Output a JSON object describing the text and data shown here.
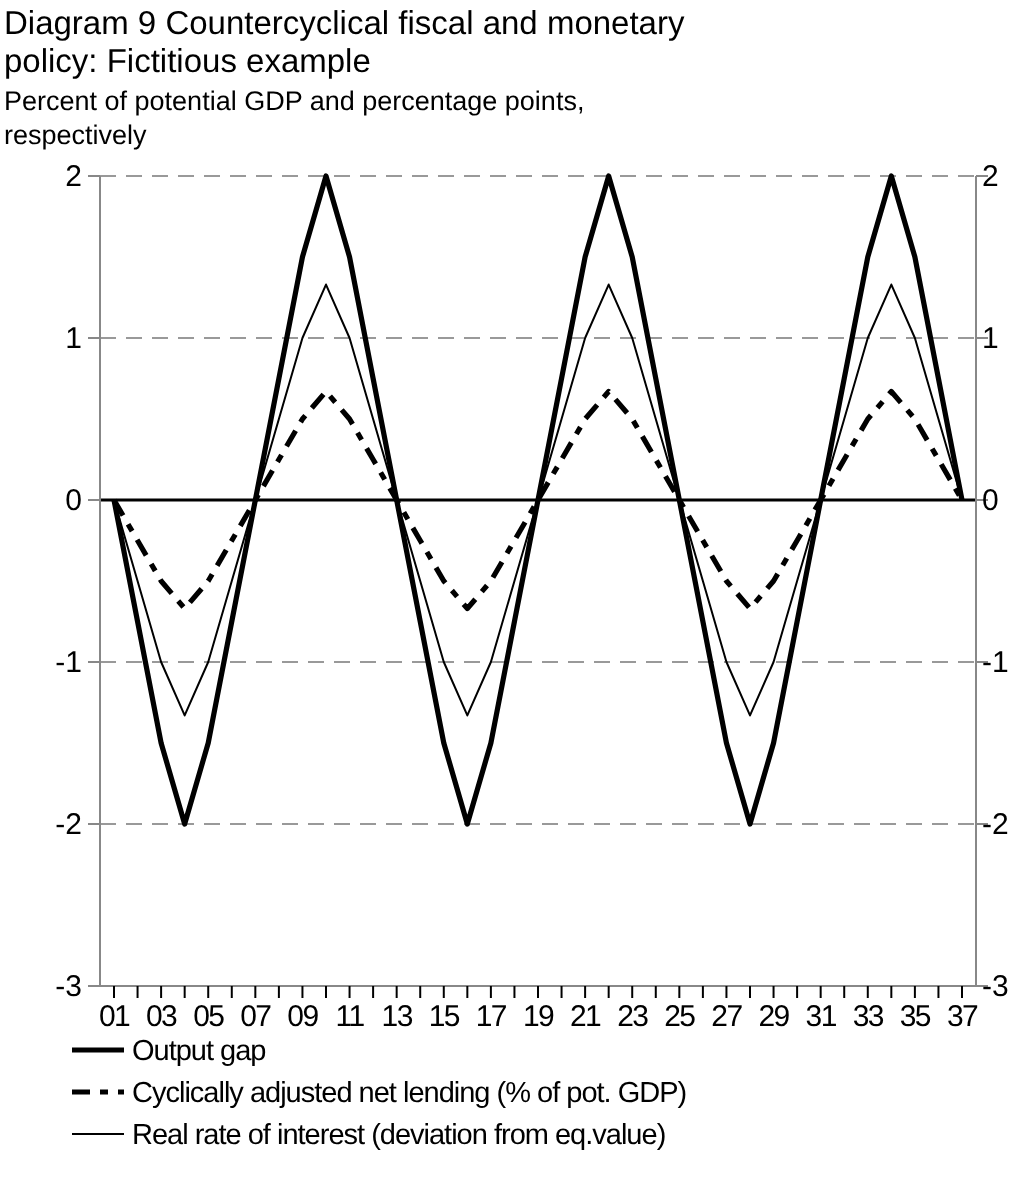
{
  "chart_data": {
    "type": "line",
    "title": "Diagram 9 Countercyclical fiscal and monetary policy: Fictitious example",
    "subtitle": "Percent of potential GDP and percentage points, respectively",
    "categories": [
      "01",
      null,
      "03",
      null,
      "05",
      null,
      "07",
      null,
      "09",
      null,
      "11",
      null,
      "13",
      null,
      "15",
      null,
      "17",
      null,
      "19",
      null,
      "21",
      null,
      "23",
      null,
      "25",
      null,
      "27",
      null,
      "29",
      null,
      "31",
      null,
      "33",
      null,
      "35",
      null,
      "37"
    ],
    "series": [
      {
        "name": "Output gap",
        "color": "#000000",
        "line_style": "solid",
        "values": [
          0,
          -0.75,
          -1.5,
          -2,
          -1.5,
          -0.75,
          0,
          0.75,
          1.5,
          2,
          1.5,
          0.75,
          0,
          -0.75,
          -1.5,
          -2,
          -1.5,
          -0.75,
          0,
          0.75,
          1.5,
          2,
          1.5,
          0.75,
          0,
          -0.75,
          -1.5,
          -2,
          -1.5,
          -0.75,
          0,
          0.75,
          1.5,
          2,
          1.5,
          0.75,
          0
        ]
      },
      {
        "name": "Cyclically adjusted net lending (% of pot. GDP)",
        "color": "#000000",
        "line_style": "dashed",
        "values": [
          0,
          -0.25,
          -0.5,
          -0.67,
          -0.5,
          -0.25,
          0,
          0.25,
          0.5,
          0.67,
          0.5,
          0.25,
          0,
          -0.25,
          -0.5,
          -0.67,
          -0.5,
          -0.25,
          0,
          0.25,
          0.5,
          0.67,
          0.5,
          0.25,
          0,
          -0.25,
          -0.5,
          -0.67,
          -0.5,
          -0.25,
          0,
          0.25,
          0.5,
          0.67,
          0.5,
          0.25,
          0
        ]
      },
      {
        "name": "Real rate of interest (deviation from eq.value)",
        "color": "#000000",
        "line_style": "solid",
        "values": [
          0,
          -0.5,
          -1,
          -1.33,
          -1,
          -0.5,
          0,
          0.5,
          1,
          1.33,
          1,
          0.5,
          0,
          -0.5,
          -1,
          -1.33,
          -1,
          -0.5,
          0,
          0.5,
          1,
          1.33,
          1,
          0.5,
          0,
          -0.5,
          -1,
          -1.33,
          -1,
          -0.5,
          0,
          0.5,
          1,
          1.33,
          1,
          0.5,
          0
        ]
      }
    ],
    "ylim": [
      -3,
      2
    ],
    "yticks": [
      -3,
      -2,
      -1,
      0,
      1,
      2
    ],
    "y2lim": [
      -3,
      2
    ],
    "y2ticks": [
      -3,
      -2,
      -1,
      0,
      1,
      2
    ],
    "grid": "y",
    "legend": "bottom",
    "ref_lines": [
      {
        "axis": "y",
        "value": 0,
        "color": "#000000",
        "line_style": "solid"
      }
    ]
  }
}
